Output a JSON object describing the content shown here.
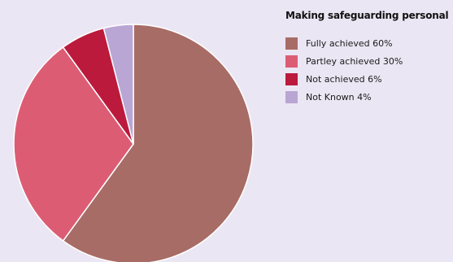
{
  "chart_data": {
    "type": "pie",
    "title": "Making safeguarding personal",
    "slices": [
      {
        "label": "Fully achieved 60%",
        "value": 60,
        "color": "#a86c66"
      },
      {
        "label": "Partley achieved 30%",
        "value": 30,
        "color": "#dc5c74"
      },
      {
        "label": "Not achieved 6%",
        "value": 6,
        "color": "#bb1a3c"
      },
      {
        "label": "Not Known 4%",
        "value": 4,
        "color": "#b9a6d4"
      }
    ],
    "legend_position": "right"
  }
}
